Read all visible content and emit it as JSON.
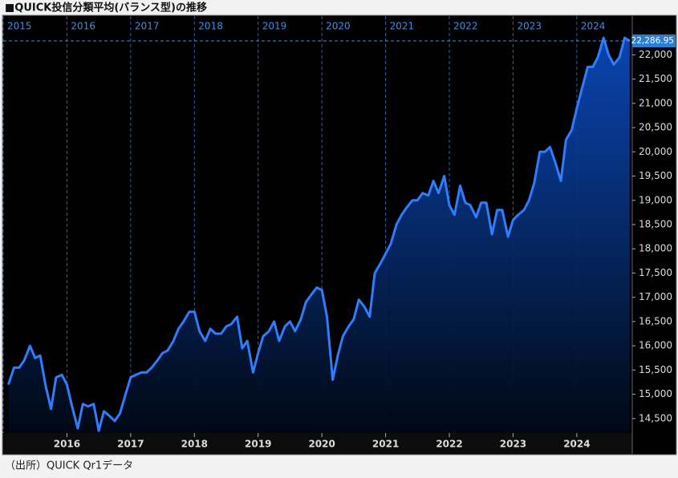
{
  "chart_data": {
    "type": "area",
    "title": "■QUICK投信分類平均(バランス型)の推移",
    "source": "（出所）QUICK Qr1データ",
    "color": "#2f7dff",
    "x": [
      2015.08,
      2015.17,
      2015.25,
      2015.33,
      2015.42,
      2015.5,
      2015.58,
      2015.67,
      2015.75,
      2015.83,
      2015.92,
      2016,
      2016.08,
      2016.17,
      2016.25,
      2016.33,
      2016.42,
      2016.5,
      2016.58,
      2016.67,
      2016.75,
      2016.83,
      2016.92,
      2017,
      2017.08,
      2017.17,
      2017.25,
      2017.33,
      2017.42,
      2017.5,
      2017.58,
      2017.67,
      2017.75,
      2017.83,
      2017.92,
      2018,
      2018.08,
      2018.17,
      2018.25,
      2018.33,
      2018.42,
      2018.5,
      2018.58,
      2018.67,
      2018.75,
      2018.83,
      2018.92,
      2019,
      2019.08,
      2019.17,
      2019.25,
      2019.33,
      2019.42,
      2019.5,
      2019.58,
      2019.67,
      2019.75,
      2019.83,
      2019.92,
      2020,
      2020.08,
      2020.17,
      2020.25,
      2020.33,
      2020.42,
      2020.5,
      2020.58,
      2020.67,
      2020.75,
      2020.83,
      2020.92,
      2021,
      2021.08,
      2021.17,
      2021.25,
      2021.33,
      2021.42,
      2021.5,
      2021.58,
      2021.67,
      2021.75,
      2021.83,
      2021.92,
      2022,
      2022.08,
      2022.17,
      2022.25,
      2022.33,
      2022.42,
      2022.5,
      2022.58,
      2022.67,
      2022.75,
      2022.83,
      2022.92,
      2023,
      2023.08,
      2023.17,
      2023.25,
      2023.33,
      2023.42,
      2023.5,
      2023.58,
      2023.67,
      2023.75,
      2023.83,
      2023.92,
      2024,
      2024.08,
      2024.17,
      2024.25,
      2024.33,
      2024.42,
      2024.5,
      2024.58,
      2024.67,
      2024.75,
      2024.83
    ],
    "values": [
      15200,
      15550,
      15550,
      15700,
      16000,
      15750,
      15800,
      15150,
      14700,
      15350,
      15400,
      15200,
      14750,
      14300,
      14800,
      14750,
      14800,
      14250,
      14650,
      14550,
      14450,
      14600,
      15000,
      15350,
      15400,
      15450,
      15450,
      15550,
      15700,
      15850,
      15900,
      16100,
      16350,
      16500,
      16700,
      16700,
      16300,
      16100,
      16350,
      16250,
      16250,
      16400,
      16450,
      16600,
      15950,
      16100,
      15450,
      15850,
      16200,
      16300,
      16500,
      16100,
      16400,
      16500,
      16300,
      16550,
      16900,
      17050,
      17200,
      17150,
      16600,
      15300,
      15800,
      16200,
      16400,
      16550,
      16950,
      16800,
      16600,
      17500,
      17700,
      17900,
      18100,
      18500,
      18700,
      18850,
      19000,
      19000,
      19150,
      19100,
      19400,
      19150,
      19500,
      18900,
      18700,
      19300,
      18950,
      18900,
      18650,
      18950,
      18950,
      18300,
      18800,
      18800,
      18250,
      18600,
      18700,
      18800,
      19000,
      19350,
      20000,
      20000,
      20100,
      19750,
      19400,
      20250,
      20450,
      20900,
      21300,
      21750,
      21750,
      21950,
      22350,
      22000,
      21800,
      21950,
      22350,
      22286.95
    ],
    "xlim": [
      2015,
      2024.87
    ],
    "top_xticks": [
      2015,
      2016,
      2017,
      2018,
      2019,
      2020,
      2021,
      2022,
      2023,
      2024
    ],
    "xticks": [
      2016,
      2017,
      2018,
      2019,
      2020,
      2021,
      2022,
      2023,
      2024
    ],
    "ylim": [
      14200,
      22800
    ],
    "yticks": [
      {
        "value": 14500,
        "label": "14,500"
      },
      {
        "value": 15000,
        "label": "15,000"
      },
      {
        "value": 15500,
        "label": "15,500"
      },
      {
        "value": 16000,
        "label": "16,000"
      },
      {
        "value": 16500,
        "label": "16,500"
      },
      {
        "value": 17000,
        "label": "17,000"
      },
      {
        "value": 17500,
        "label": "17,500"
      },
      {
        "value": 18000,
        "label": "18,000"
      },
      {
        "value": 18500,
        "label": "18,500"
      },
      {
        "value": 19000,
        "label": "19,000"
      },
      {
        "value": 19500,
        "label": "19,500"
      },
      {
        "value": 20000,
        "label": "20,000"
      },
      {
        "value": 20500,
        "label": "20,500"
      },
      {
        "value": 21000,
        "label": "21,000"
      },
      {
        "value": 21500,
        "label": "21,500"
      },
      {
        "value": 22000,
        "label": "22,000"
      }
    ],
    "last_value": {
      "value": 22286.95,
      "label": "22,286.95"
    }
  }
}
